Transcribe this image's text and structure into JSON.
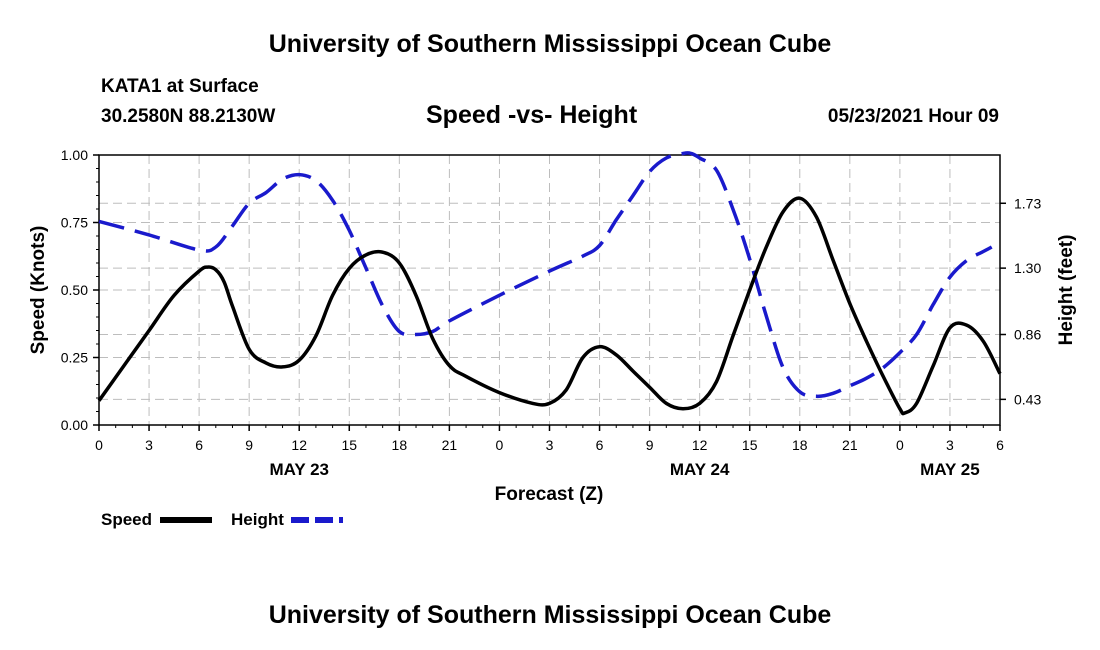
{
  "page": {
    "title_top": "University of Southern Mississippi Ocean Cube",
    "title_bottom": "University of Southern Mississippi Ocean Cube",
    "station": "KATA1 at Surface",
    "coords": "30.2580N  88.2130W",
    "datetime": "05/23/2021 Hour 09"
  },
  "chart_data": {
    "type": "line",
    "title": "Speed -vs- Height",
    "xlabel": "Forecast (Z)",
    "ylabel_left": "Speed (Knots)",
    "ylabel_right": "Height (feet)",
    "x_unit": "forecast hours from 00Z May 23",
    "xlim": [
      0,
      54
    ],
    "ylim_left": [
      0,
      1.0
    ],
    "ylim_right": [
      0.26,
      2.05
    ],
    "x_ticks": [
      0,
      3,
      6,
      9,
      12,
      15,
      18,
      21,
      24,
      27,
      30,
      33,
      36,
      39,
      42,
      45,
      48,
      51,
      54
    ],
    "x_tick_labels": [
      "0",
      "3",
      "6",
      "9",
      "12",
      "15",
      "18",
      "21",
      "0",
      "3",
      "6",
      "9",
      "12",
      "15",
      "18",
      "21",
      "0",
      "3",
      "6"
    ],
    "y_left_ticks": [
      0,
      0.25,
      0.5,
      0.75,
      1.0
    ],
    "y_left_tick_labels": [
      "0.00",
      "0.25",
      "0.50",
      "0.75",
      "1.00"
    ],
    "y_right_ticks": [
      0.43,
      0.86,
      1.3,
      1.73
    ],
    "y_right_tick_labels": [
      "0.43",
      "0.86",
      "1.30",
      "1.73"
    ],
    "date_labels": [
      {
        "x": 12,
        "label": "MAY 23"
      },
      {
        "x": 36,
        "label": "MAY 24"
      },
      {
        "x": 51,
        "label": "MAY 25"
      }
    ],
    "grid": true,
    "legend": {
      "position": "bottom-left",
      "speed_label": "Speed",
      "height_label": "Height"
    },
    "series": [
      {
        "name": "Speed",
        "axis": "left",
        "color": "#000000",
        "style": "solid",
        "x": [
          0,
          1.5,
          3,
          4.5,
          6,
          6.5,
          7,
          7.5,
          8,
          9,
          10,
          11,
          12,
          13,
          14,
          15,
          16,
          17,
          18,
          19,
          20,
          21,
          22,
          24,
          26,
          27,
          28,
          29,
          30,
          31,
          32,
          33,
          34,
          35,
          36,
          37,
          38,
          39,
          40,
          41,
          42,
          43,
          44,
          45,
          46,
          47,
          48,
          48.3,
          49,
          50,
          51,
          52,
          53,
          54
        ],
        "values": [
          0.09,
          0.22,
          0.35,
          0.48,
          0.57,
          0.585,
          0.575,
          0.53,
          0.44,
          0.28,
          0.23,
          0.215,
          0.24,
          0.33,
          0.48,
          0.58,
          0.63,
          0.64,
          0.6,
          0.48,
          0.32,
          0.22,
          0.18,
          0.12,
          0.08,
          0.08,
          0.13,
          0.25,
          0.29,
          0.26,
          0.2,
          0.14,
          0.08,
          0.06,
          0.08,
          0.16,
          0.33,
          0.5,
          0.66,
          0.79,
          0.84,
          0.77,
          0.61,
          0.45,
          0.31,
          0.18,
          0.06,
          0.045,
          0.08,
          0.22,
          0.36,
          0.37,
          0.31,
          0.19
        ]
      },
      {
        "name": "Height",
        "axis": "right",
        "color": "#1a1acc",
        "style": "dashed",
        "x": [
          0,
          3,
          6,
          7,
          8,
          9,
          10,
          11,
          12,
          13,
          14,
          15,
          16,
          17,
          18,
          19,
          20,
          21,
          24,
          27,
          29,
          30,
          31,
          32,
          33,
          34,
          35,
          35.5,
          36,
          37,
          38,
          39,
          40,
          41,
          42,
          43,
          44,
          45,
          46,
          47,
          48,
          49,
          50,
          51,
          52,
          53,
          53.5
        ],
        "values": [
          1.61,
          1.52,
          1.42,
          1.44,
          1.58,
          1.73,
          1.8,
          1.89,
          1.92,
          1.88,
          1.75,
          1.55,
          1.3,
          1.05,
          0.88,
          0.86,
          0.88,
          0.95,
          1.12,
          1.28,
          1.38,
          1.45,
          1.62,
          1.78,
          1.94,
          2.03,
          2.06,
          2.06,
          2.03,
          1.95,
          1.69,
          1.36,
          0.98,
          0.64,
          0.48,
          0.45,
          0.47,
          0.52,
          0.57,
          0.64,
          0.74,
          0.86,
          1.06,
          1.24,
          1.35,
          1.41,
          1.44
        ]
      }
    ]
  }
}
